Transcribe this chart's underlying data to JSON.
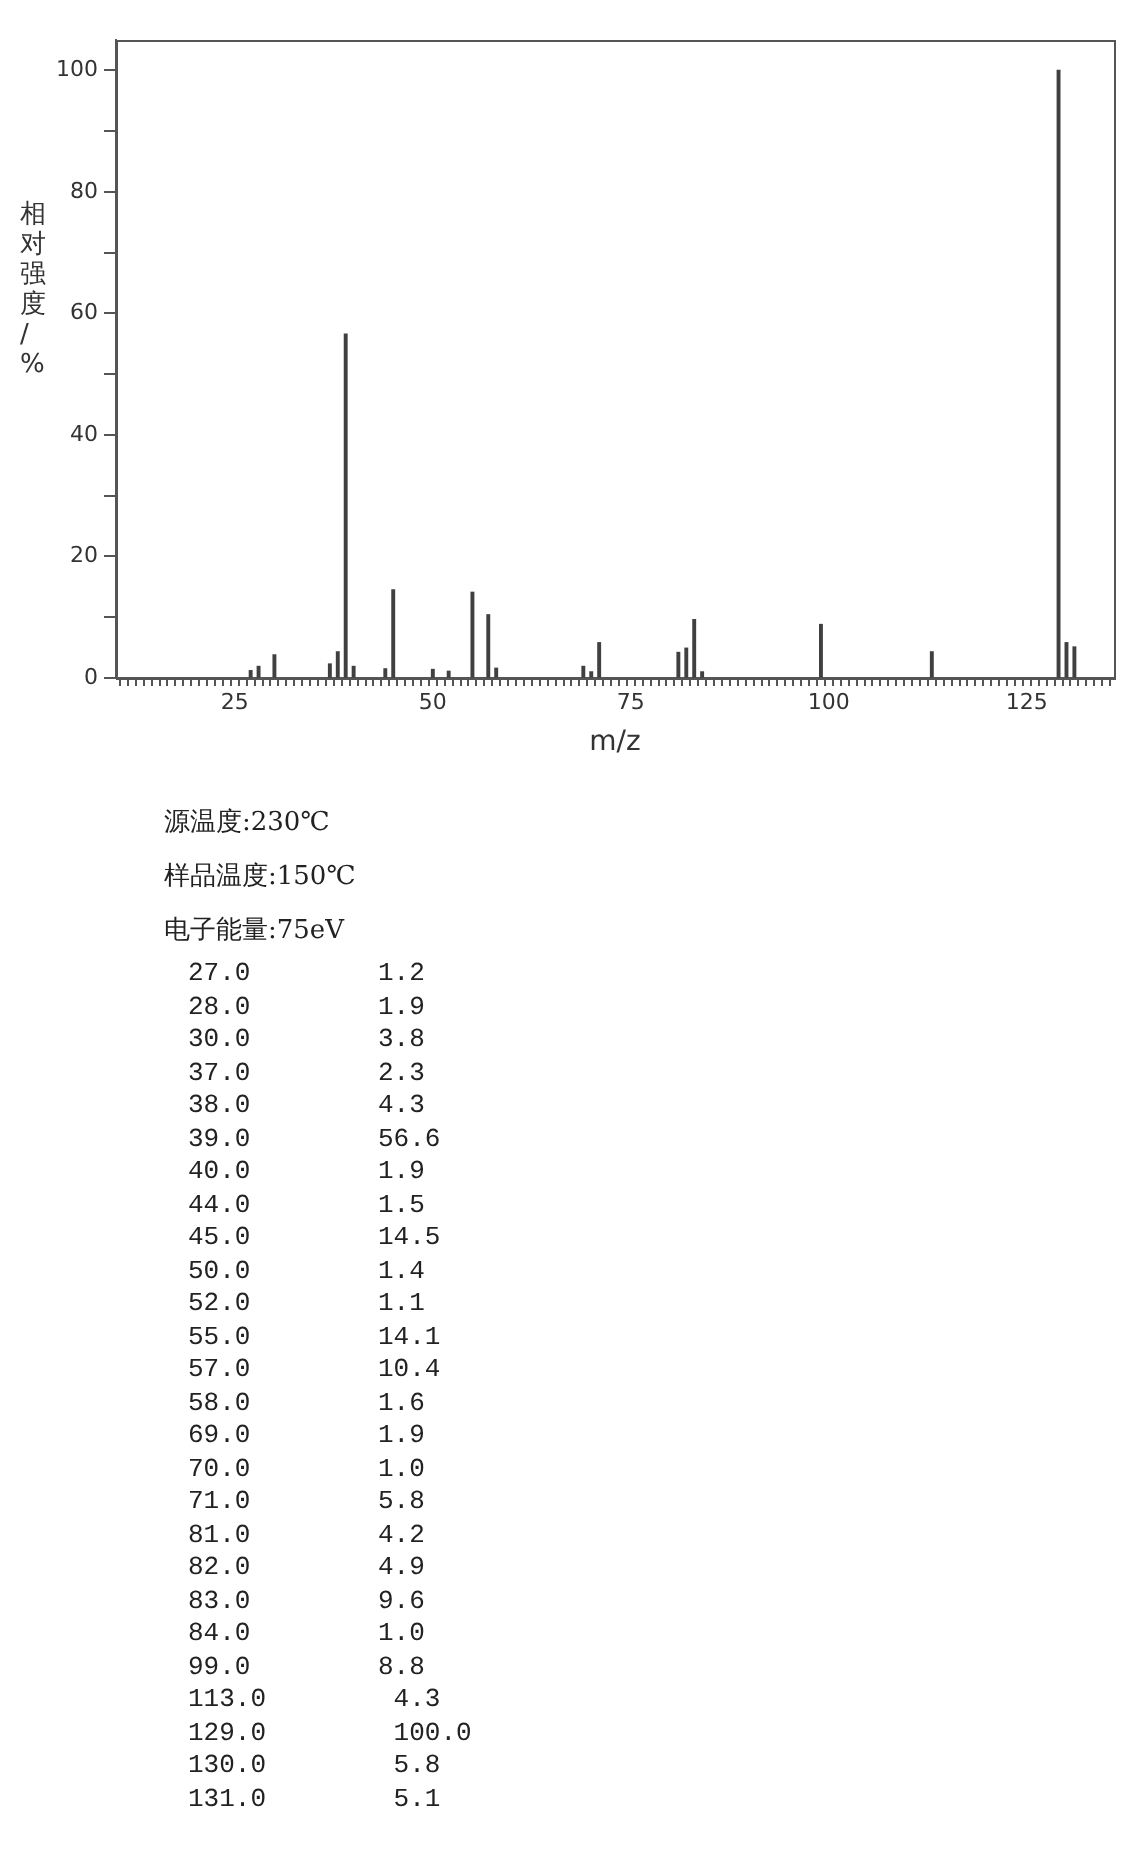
{
  "chart_data": {
    "type": "bar",
    "xlabel": "m/z",
    "ylabel": "相对强度/%",
    "color": "#404040",
    "x": [
      27,
      28,
      30,
      37,
      38,
      39,
      40,
      44,
      45,
      50,
      52,
      55,
      57,
      58,
      69,
      70,
      71,
      81,
      82,
      83,
      84,
      99,
      113,
      129,
      130,
      131
    ],
    "values": [
      1.2,
      1.9,
      3.8,
      2.3,
      4.3,
      56.6,
      1.9,
      1.5,
      14.5,
      1.4,
      1.1,
      14.1,
      10.4,
      1.6,
      1.9,
      1.0,
      5.8,
      4.2,
      4.9,
      9.6,
      1.0,
      8.8,
      4.3,
      100.0,
      5.8,
      5.1
    ],
    "xlim": [
      10,
      136
    ],
    "ylim": [
      0,
      105
    ],
    "xticks": [
      {
        "value": 10,
        "label": null
      },
      {
        "value": 11,
        "label": null
      },
      {
        "value": 12,
        "label": null
      },
      {
        "value": 13,
        "label": null
      },
      {
        "value": 14,
        "label": null
      },
      {
        "value": 15,
        "label": null
      },
      {
        "value": 16,
        "label": null
      },
      {
        "value": 17,
        "label": null
      },
      {
        "value": 18,
        "label": null
      },
      {
        "value": 19,
        "label": null
      },
      {
        "value": 20,
        "label": null
      },
      {
        "value": 21,
        "label": null
      },
      {
        "value": 22,
        "label": null
      },
      {
        "value": 23,
        "label": null
      },
      {
        "value": 24,
        "label": null
      },
      25,
      {
        "value": 26,
        "label": null
      },
      {
        "value": 27,
        "label": null
      },
      {
        "value": 28,
        "label": null
      },
      {
        "value": 29,
        "label": null
      },
      {
        "value": 30,
        "label": null
      },
      {
        "value": 31,
        "label": null
      },
      {
        "value": 32,
        "label": null
      },
      {
        "value": 33,
        "label": null
      },
      {
        "value": 34,
        "label": null
      },
      {
        "value": 35,
        "label": null
      },
      {
        "value": 36,
        "label": null
      },
      {
        "value": 37,
        "label": null
      },
      {
        "value": 38,
        "label": null
      },
      {
        "value": 39,
        "label": null
      },
      {
        "value": 40,
        "label": null
      },
      {
        "value": 41,
        "label": null
      },
      {
        "value": 42,
        "label": null
      },
      {
        "value": 43,
        "label": null
      },
      {
        "value": 44,
        "label": null
      },
      {
        "value": 45,
        "label": null
      },
      {
        "value": 46,
        "label": null
      },
      {
        "value": 47,
        "label": null
      },
      {
        "value": 48,
        "label": null
      },
      {
        "value": 49,
        "label": null
      },
      50,
      {
        "value": 51,
        "label": null
      },
      {
        "value": 52,
        "label": null
      },
      {
        "value": 53,
        "label": null
      },
      {
        "value": 54,
        "label": null
      },
      {
        "value": 55,
        "label": null
      },
      {
        "value": 56,
        "label": null
      },
      {
        "value": 57,
        "label": null
      },
      {
        "value": 58,
        "label": null
      },
      {
        "value": 59,
        "label": null
      },
      {
        "value": 60,
        "label": null
      },
      {
        "value": 61,
        "label": null
      },
      {
        "value": 62,
        "label": null
      },
      {
        "value": 63,
        "label": null
      },
      {
        "value": 64,
        "label": null
      },
      {
        "value": 65,
        "label": null
      },
      {
        "value": 66,
        "label": null
      },
      {
        "value": 67,
        "label": null
      },
      {
        "value": 68,
        "label": null
      },
      {
        "value": 69,
        "label": null
      },
      {
        "value": 70,
        "label": null
      },
      {
        "value": 71,
        "label": null
      },
      {
        "value": 72,
        "label": null
      },
      {
        "value": 73,
        "label": null
      },
      {
        "value": 74,
        "label": null
      },
      75,
      {
        "value": 76,
        "label": null
      },
      {
        "value": 77,
        "label": null
      },
      {
        "value": 78,
        "label": null
      },
      {
        "value": 79,
        "label": null
      },
      {
        "value": 80,
        "label": null
      },
      {
        "value": 81,
        "label": null
      },
      {
        "value": 82,
        "label": null
      },
      {
        "value": 83,
        "label": null
      },
      {
        "value": 84,
        "label": null
      },
      {
        "value": 85,
        "label": null
      },
      {
        "value": 86,
        "label": null
      },
      {
        "value": 87,
        "label": null
      },
      {
        "value": 88,
        "label": null
      },
      {
        "value": 89,
        "label": null
      },
      {
        "value": 90,
        "label": null
      },
      {
        "value": 91,
        "label": null
      },
      {
        "value": 92,
        "label": null
      },
      {
        "value": 93,
        "label": null
      },
      {
        "value": 94,
        "label": null
      },
      {
        "value": 95,
        "label": null
      },
      {
        "value": 96,
        "label": null
      },
      {
        "value": 97,
        "label": null
      },
      {
        "value": 98,
        "label": null
      },
      {
        "value": 99,
        "label": null
      },
      100,
      {
        "value": 101,
        "label": null
      },
      {
        "value": 102,
        "label": null
      },
      {
        "value": 103,
        "label": null
      },
      {
        "value": 104,
        "label": null
      },
      {
        "value": 105,
        "label": null
      },
      {
        "value": 106,
        "label": null
      },
      {
        "value": 107,
        "label": null
      },
      {
        "value": 108,
        "label": null
      },
      {
        "value": 109,
        "label": null
      },
      {
        "value": 110,
        "label": null
      },
      {
        "value": 111,
        "label": null
      },
      {
        "value": 112,
        "label": null
      },
      {
        "value": 113,
        "label": null
      },
      {
        "value": 114,
        "label": null
      },
      {
        "value": 115,
        "label": null
      },
      {
        "value": 116,
        "label": null
      },
      {
        "value": 117,
        "label": null
      },
      {
        "value": 118,
        "label": null
      },
      {
        "value": 119,
        "label": null
      },
      {
        "value": 120,
        "label": null
      },
      {
        "value": 121,
        "label": null
      },
      {
        "value": 122,
        "label": null
      },
      {
        "value": 123,
        "label": null
      },
      {
        "value": 124,
        "label": null
      },
      125,
      {
        "value": 126,
        "label": null
      },
      {
        "value": 127,
        "label": null
      },
      {
        "value": 128,
        "label": null
      },
      {
        "value": 129,
        "label": null
      },
      {
        "value": 130,
        "label": null
      },
      {
        "value": 131,
        "label": null
      },
      {
        "value": 132,
        "label": null
      },
      {
        "value": 133,
        "label": null
      },
      {
        "value": 134,
        "label": null
      },
      {
        "value": 135,
        "label": null
      }
    ],
    "yticks": [
      0,
      {
        "value": 10,
        "label": null
      },
      20,
      {
        "value": 30,
        "label": null
      },
      40,
      {
        "value": 50,
        "label": null
      },
      60,
      {
        "value": 70,
        "label": null
      },
      80,
      {
        "value": 90,
        "label": null
      },
      100
    ],
    "grid": false,
    "legend": false,
    "annotations": [
      "源温度:230℃",
      "样品温度:150℃",
      "电子能量:75eV",
      "27.0 1.2",
      "28.0 1.9",
      "30.0 3.8",
      "37.0 2.3",
      "38.0 4.3",
      "39.0 56.6",
      "40.0 1.9",
      "44.0 1.5",
      "45.0 14.5",
      "50.0 1.4",
      "52.0 1.1",
      "55.0 14.1",
      "57.0 10.4",
      "58.0 1.6",
      "69.0 1.9",
      "70.0 1.0",
      "71.0 5.8",
      "81.0 4.2",
      "82.0 4.9",
      "83.0 9.6",
      "84.0 1.0",
      "99.0 8.8",
      "113.0 4.3",
      "129.0 100.0",
      "130.0 5.8",
      "131.0 5.1"
    ]
  }
}
